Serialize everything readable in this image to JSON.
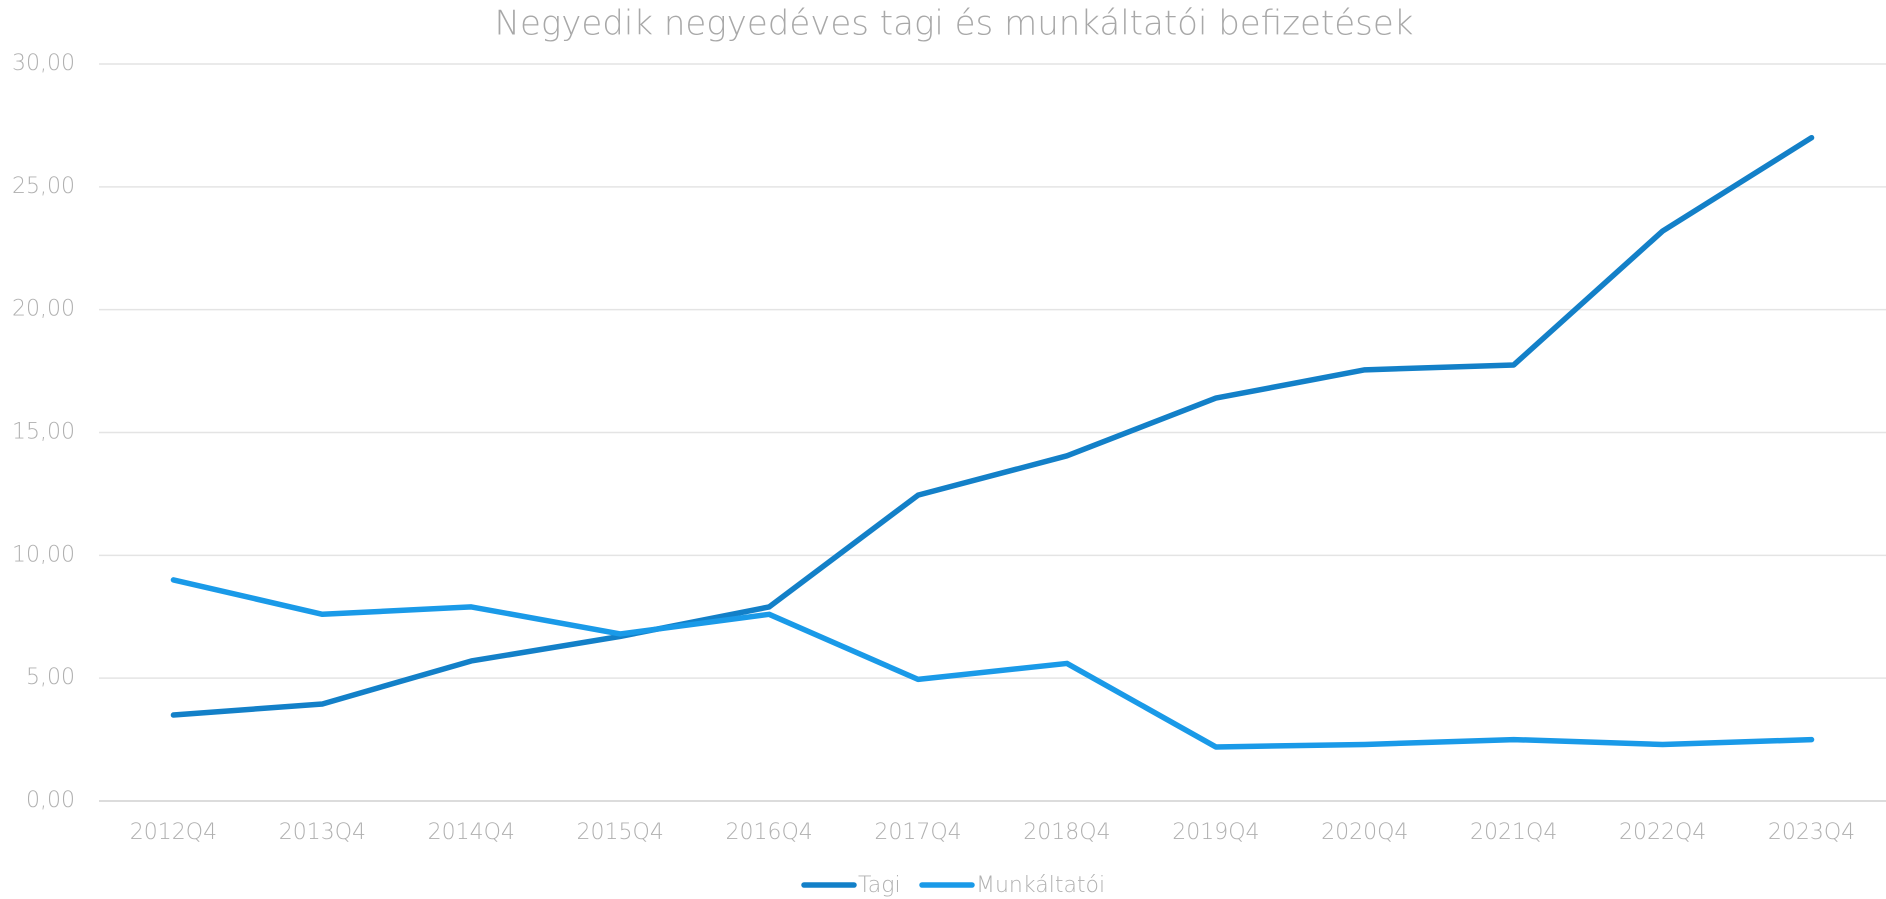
{
  "chart_data": {
    "type": "line",
    "title": "Negyedik negyedéves tagi és munkáltatói befizetések",
    "categories": [
      "2012Q4",
      "2013Q4",
      "2014Q4",
      "2015Q4",
      "2016Q4",
      "2017Q4",
      "2018Q4",
      "2019Q4",
      "2020Q4",
      "2021Q4",
      "2022Q4",
      "2023Q4"
    ],
    "series": [
      {
        "name": "Tagi",
        "color": "#1380c8",
        "values": [
          3.5,
          3.95,
          5.7,
          6.7,
          7.9,
          12.45,
          14.05,
          16.4,
          17.55,
          17.75,
          23.2,
          27.0
        ]
      },
      {
        "name": "Munkáltatói",
        "color": "#1a9ae8",
        "values": [
          9.0,
          7.6,
          7.9,
          6.8,
          7.6,
          4.95,
          5.6,
          2.2,
          2.3,
          2.5,
          2.3,
          2.5
        ]
      }
    ],
    "ylim": [
      0,
      30
    ],
    "yticks": [
      {
        "value": 0,
        "label": "0,00"
      },
      {
        "value": 5,
        "label": "5,00"
      },
      {
        "value": 10,
        "label": "10,00"
      },
      {
        "value": 15,
        "label": "15,00"
      },
      {
        "value": 20,
        "label": "20,00"
      },
      {
        "value": 25,
        "label": "25,00"
      },
      {
        "value": 30,
        "label": "30,00"
      }
    ],
    "grid": true,
    "legend": "bottom"
  }
}
